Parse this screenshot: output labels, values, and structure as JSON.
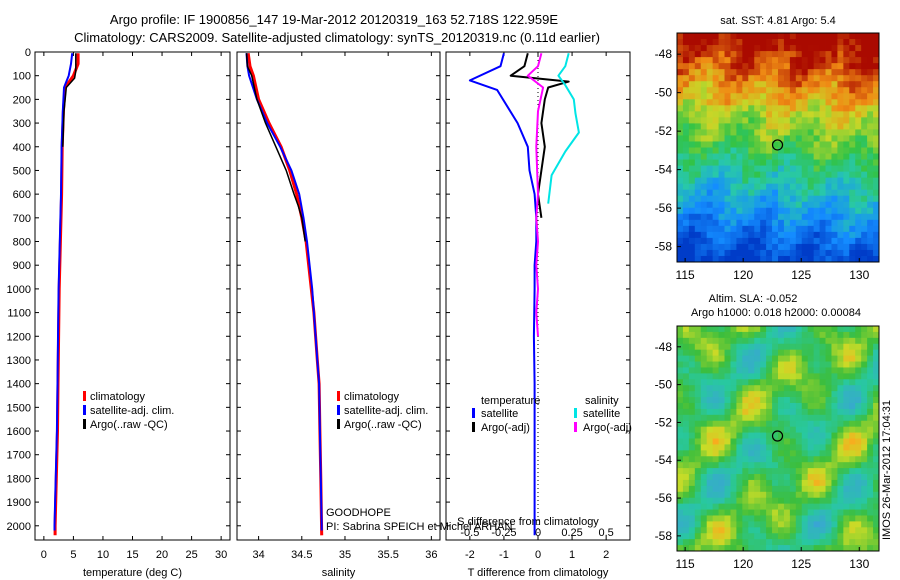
{
  "title_line1": "Argo profile: IF 1900856_147 19-Mar-2012 20120319_163 52.718S 122.959E",
  "title_line2": "Climatology: CARS2009. Satellite-adjusted climatology: synTS_20120319.nc (0.11d earlier)",
  "side_stamp": "IMOS 26-Mar-2012 17:04:31",
  "colors": {
    "climatology": "#ff0000",
    "satellite": "#0000ff",
    "argo": "#000000",
    "sal_sat": "#00e5e5",
    "sal_argo": "#ff00ff"
  },
  "chart_data": [
    {
      "type": "line",
      "name": "temperature-profile",
      "xlabel": "temperature (deg C)",
      "xlim": [
        -1.5,
        31.5
      ],
      "xticks": [
        0,
        5,
        10,
        15,
        20,
        25,
        30
      ],
      "ylim": [
        0,
        2060
      ],
      "yticks": [
        0,
        100,
        200,
        300,
        400,
        500,
        600,
        700,
        800,
        900,
        1000,
        1100,
        1200,
        1300,
        1400,
        1500,
        1600,
        1700,
        1800,
        1900,
        2000
      ],
      "legend": [
        "climatology",
        "satellite-adj. clim.",
        "Argo(..raw -QC)"
      ],
      "series": [
        {
          "name": "climatology",
          "color": "#ff0000",
          "width": 3,
          "points": [
            [
              5.8,
              5
            ],
            [
              5.8,
              50
            ],
            [
              5.0,
              100
            ],
            [
              3.6,
              150
            ],
            [
              3.3,
              250
            ],
            [
              3.1,
              400
            ],
            [
              3.0,
              600
            ],
            [
              2.8,
              800
            ],
            [
              2.6,
              1000
            ],
            [
              2.5,
              1200
            ],
            [
              2.4,
              1400
            ],
            [
              2.3,
              1600
            ],
            [
              2.1,
              1800
            ],
            [
              1.9,
              2000
            ],
            [
              1.9,
              2040
            ]
          ]
        },
        {
          "name": "satellite-adj. clim.",
          "color": "#0000ff",
          "width": 2,
          "points": [
            [
              4.8,
              5
            ],
            [
              4.6,
              50
            ],
            [
              4.2,
              100
            ],
            [
              3.4,
              150
            ],
            [
              3.2,
              250
            ],
            [
              3.0,
              400
            ],
            [
              2.9,
              600
            ],
            [
              2.7,
              800
            ],
            [
              2.5,
              1000
            ],
            [
              2.4,
              1200
            ],
            [
              2.3,
              1400
            ],
            [
              2.2,
              1600
            ],
            [
              2.0,
              1800
            ],
            [
              1.8,
              2000
            ],
            [
              1.8,
              2020
            ]
          ]
        },
        {
          "name": "Argo(..raw -QC)",
          "color": "#000000",
          "width": 1.5,
          "points": [
            [
              5.4,
              5
            ],
            [
              5.4,
              80
            ],
            [
              5.2,
              110
            ],
            [
              3.8,
              150
            ],
            [
              3.4,
              250
            ],
            [
              3.2,
              400
            ]
          ]
        }
      ]
    },
    {
      "type": "line",
      "name": "salinity-profile",
      "xlabel": "salinity",
      "xlim": [
        33.75,
        36.1
      ],
      "xticks": [
        34,
        34.5,
        35,
        35.5,
        36
      ],
      "ylim": [
        0,
        2060
      ],
      "legend": [
        "climatology",
        "satellite-adj. clim.",
        "Argo(..raw -QC)"
      ],
      "annotation": [
        "GOODHOPE",
        "PI: Sabrina SPEICH et Michel ARHAN"
      ],
      "series": [
        {
          "name": "climatology",
          "color": "#ff0000",
          "width": 3,
          "points": [
            [
              33.88,
              5
            ],
            [
              33.9,
              60
            ],
            [
              33.94,
              100
            ],
            [
              34.0,
              200
            ],
            [
              34.12,
              300
            ],
            [
              34.26,
              400
            ],
            [
              34.36,
              500
            ],
            [
              34.44,
              600
            ],
            [
              34.5,
              700
            ],
            [
              34.55,
              800
            ],
            [
              34.58,
              900
            ],
            [
              34.61,
              1000
            ],
            [
              34.64,
              1100
            ],
            [
              34.66,
              1200
            ],
            [
              34.68,
              1300
            ],
            [
              34.7,
              1400
            ],
            [
              34.71,
              1600
            ],
            [
              34.72,
              1800
            ],
            [
              34.73,
              2040
            ]
          ]
        },
        {
          "name": "satellite-adj. clim.",
          "color": "#0000ff",
          "width": 2,
          "points": [
            [
              33.86,
              5
            ],
            [
              33.87,
              60
            ],
            [
              33.89,
              100
            ],
            [
              33.98,
              200
            ],
            [
              34.1,
              300
            ],
            [
              34.25,
              400
            ],
            [
              34.38,
              500
            ],
            [
              34.47,
              600
            ],
            [
              34.52,
              700
            ],
            [
              34.56,
              800
            ],
            [
              34.59,
              900
            ],
            [
              34.62,
              1000
            ],
            [
              34.64,
              1100
            ],
            [
              34.66,
              1200
            ],
            [
              34.68,
              1300
            ],
            [
              34.7,
              1400
            ],
            [
              34.71,
              1600
            ],
            [
              34.72,
              1800
            ],
            [
              34.73,
              2000
            ],
            [
              34.73,
              2020
            ]
          ]
        },
        {
          "name": "Argo(..raw -QC)",
          "color": "#000000",
          "width": 1.5,
          "points": [
            [
              33.86,
              5
            ],
            [
              33.87,
              60
            ],
            [
              33.92,
              100
            ],
            [
              33.98,
              200
            ],
            [
              34.08,
              300
            ],
            [
              34.2,
              400
            ],
            [
              34.32,
              500
            ],
            [
              34.41,
              600
            ],
            [
              34.46,
              650
            ],
            [
              34.5,
              700
            ],
            [
              34.54,
              800
            ]
          ]
        }
      ]
    },
    {
      "type": "line",
      "name": "difference-profile",
      "xlabel": "T difference from climatology",
      "xlabel2": "S difference from climatology",
      "xlim": [
        -2.7,
        2.7
      ],
      "xticks": [
        -2,
        -1,
        0,
        1,
        2
      ],
      "sticks_labels": [
        "-0.5",
        "-0.25",
        "0",
        "0.25",
        "0.5"
      ],
      "sticks_values": [
        -0.5,
        -0.25,
        0,
        0.25,
        0.5
      ],
      "s_scale": 4,
      "ylim": [
        0,
        2060
      ],
      "legend_left_title": "temperature",
      "legend_right_title": "salinity",
      "legend_left": [
        "satellite",
        "Argo(-adj)"
      ],
      "legend_right": [
        "satellite",
        "Argo(-adj)"
      ],
      "series": [
        {
          "name": "T satellite",
          "color": "#0000ff",
          "width": 2,
          "points": [
            [
              -1.0,
              5
            ],
            [
              -1.1,
              60
            ],
            [
              -2.0,
              120
            ],
            [
              -1.2,
              160
            ],
            [
              -0.6,
              300
            ],
            [
              -0.3,
              400
            ],
            [
              -0.25,
              500
            ],
            [
              -0.1,
              600
            ],
            [
              -0.05,
              700
            ],
            [
              -0.05,
              800
            ],
            [
              -0.1,
              900
            ],
            [
              -0.1,
              1000
            ],
            [
              -0.12,
              1200
            ],
            [
              -0.1,
              1400
            ],
            [
              -0.1,
              1600
            ],
            [
              -0.1,
              1800
            ],
            [
              -0.1,
              2040
            ]
          ]
        },
        {
          "name": "T Argo(-adj)",
          "color": "#000000",
          "width": 2,
          "points": [
            [
              -0.3,
              5
            ],
            [
              -0.4,
              60
            ],
            [
              -0.8,
              100
            ],
            [
              0.9,
              125
            ],
            [
              0.3,
              150
            ],
            [
              0.2,
              200
            ],
            [
              0.1,
              300
            ],
            [
              0.2,
              400
            ],
            [
              0.1,
              500
            ],
            [
              0.0,
              600
            ],
            [
              0.1,
              700
            ]
          ]
        },
        {
          "name": "S satellite",
          "color": "#00e5e5",
          "width": 2,
          "points": [
            [
              0.9,
              5
            ],
            [
              0.8,
              60
            ],
            [
              0.6,
              100
            ],
            [
              0.8,
              140
            ],
            [
              1.05,
              200
            ],
            [
              1.1,
              260
            ],
            [
              1.2,
              340
            ],
            [
              0.8,
              420
            ],
            [
              0.4,
              520
            ],
            [
              0.3,
              640
            ]
          ]
        },
        {
          "name": "S Argo(-adj)",
          "color": "#ff00ff",
          "width": 2,
          "points": [
            [
              0.1,
              5
            ],
            [
              0.0,
              60
            ],
            [
              -0.3,
              100
            ],
            [
              0.15,
              150
            ],
            [
              0.0,
              250
            ],
            [
              -0.05,
              400
            ],
            [
              0.0,
              600
            ],
            [
              -0.05,
              700
            ],
            [
              0.0,
              800
            ],
            [
              -0.05,
              900
            ],
            [
              0.0,
              1000
            ],
            [
              -0.05,
              1100
            ],
            [
              0.0,
              1200
            ]
          ]
        }
      ]
    },
    {
      "type": "heatmap",
      "name": "sst-map",
      "title": "sat. SST: 4.81 Argo: 5.4",
      "xticks": [
        115,
        120,
        125,
        130
      ],
      "yticks": [
        -48,
        -50,
        -52,
        -54,
        -56,
        -58
      ],
      "xlim": [
        114.3,
        131.7
      ],
      "ylim": [
        -58.8,
        -46.9
      ],
      "marker": [
        122.959,
        -52.718
      ]
    },
    {
      "type": "heatmap",
      "name": "sla-map",
      "title": "Altim. SLA: -0.052",
      "title2": "Argo h1000: 0.018 h2000: 0.00084",
      "xticks": [
        115,
        120,
        125,
        130
      ],
      "yticks": [
        -48,
        -50,
        -52,
        -54,
        -56,
        -58
      ],
      "xlim": [
        114.3,
        131.7
      ],
      "ylim": [
        -58.8,
        -46.9
      ],
      "marker": [
        122.959,
        -52.718
      ]
    }
  ]
}
